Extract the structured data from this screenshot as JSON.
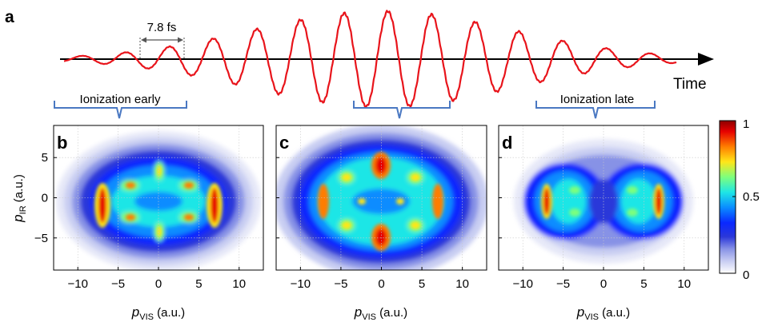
{
  "panel_letters": {
    "a": "a",
    "b": "b",
    "c": "c",
    "d": "d"
  },
  "waveform": {
    "period_label": "7.8 fs",
    "time_label": "Time",
    "bracket_early_label": "Ionization early",
    "bracket_late_label": "Ionization late",
    "line_color": "#e8141b",
    "bracket_color": "#4a78c2"
  },
  "chart_data": [
    {
      "type": "line",
      "panel": "a",
      "title": "",
      "xlabel": "Time",
      "ylabel": "",
      "series": [
        {
          "x": [
            0,
            14
          ],
          "period_fs": 7.8,
          "cycles": 14
        }
      ],
      "annotations": [
        "7.8 fs",
        "Ionization early",
        "Ionization late"
      ]
    },
    {
      "type": "heatmap",
      "panel": "b",
      "xlabel_sym": "p",
      "xlabel_sub": "VIS",
      "xlabel_unit": " (a.u.)",
      "ylabel_sym": "p",
      "ylabel_sub": "IR",
      "ylabel_unit": " (a.u.)",
      "xlim": [
        -13,
        13
      ],
      "ylim": [
        -9,
        9
      ],
      "xticks": [
        -10,
        -5,
        0,
        5,
        10
      ],
      "yticks": [
        5,
        0,
        -5
      ],
      "xtick_labels": [
        "−10",
        "−5",
        "0",
        "5",
        "10"
      ],
      "ytick_labels": [
        "5",
        "0",
        "−5"
      ],
      "grid": true
    },
    {
      "type": "heatmap",
      "panel": "c",
      "xlabel_sym": "p",
      "xlabel_sub": "VIS",
      "xlabel_unit": " (a.u.)",
      "xlim": [
        -13,
        13
      ],
      "ylim": [
        -9,
        9
      ],
      "xticks": [
        -10,
        -5,
        0,
        5,
        10
      ],
      "xtick_labels": [
        "−10",
        "−5",
        "0",
        "5",
        "10"
      ],
      "grid": true
    },
    {
      "type": "heatmap",
      "panel": "d",
      "xlabel_sym": "p",
      "xlabel_sub": "VIS",
      "xlabel_unit": " (a.u.)",
      "xlim": [
        -13,
        13
      ],
      "ylim": [
        -9,
        9
      ],
      "xticks": [
        -10,
        -5,
        0,
        5,
        10
      ],
      "xtick_labels": [
        "−10",
        "−5",
        "0",
        "5",
        "10"
      ],
      "grid": true
    }
  ],
  "colorbar": {
    "min_label": "0",
    "mid_label": "0.5",
    "max_label": "1",
    "colormap": [
      "#ffffff",
      "#c8cdf2",
      "#8792e6",
      "#2b37d9",
      "#0a28ff",
      "#0a8cff",
      "#1ee6e6",
      "#7dff7d",
      "#ffe619",
      "#ff7d00",
      "#e60000",
      "#8c0000"
    ]
  }
}
